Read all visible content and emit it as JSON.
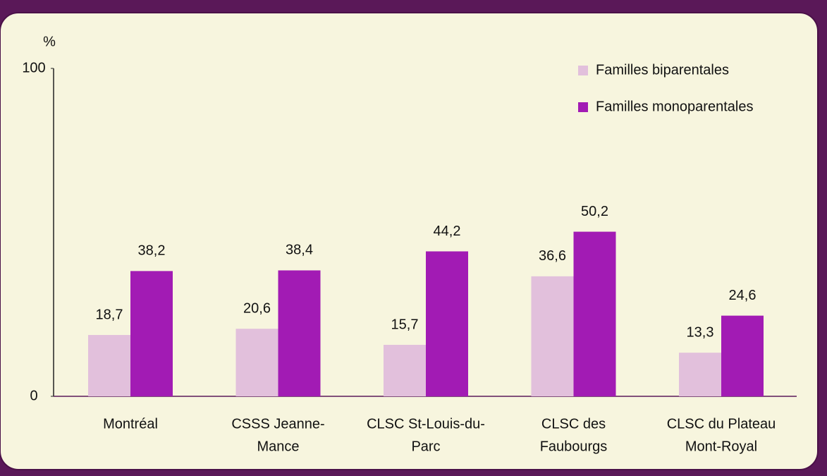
{
  "chart_data": {
    "type": "bar",
    "y_label": "%",
    "categories": [
      [
        "Montréal"
      ],
      [
        "CSSS Jeanne-",
        "Mance"
      ],
      [
        "CLSC St-Louis-du-",
        "Parc"
      ],
      [
        "CLSC des",
        "Faubourgs"
      ],
      [
        "CLSC du Plateau",
        "Mont-Royal"
      ]
    ],
    "series": [
      {
        "name": "Familles biparentales",
        "color": "#e2c0dc",
        "values": [
          18.7,
          20.6,
          15.7,
          36.6,
          13.3
        ],
        "value_labels": [
          "18,7",
          "20,6",
          "15,7",
          "36,6",
          "13,3"
        ]
      },
      {
        "name": "Familles monoparentales",
        "color": "#a21bb4",
        "values": [
          38.2,
          38.4,
          44.2,
          50.2,
          24.6
        ],
        "value_labels": [
          "38,2",
          "38,4",
          "44,2",
          "50,2",
          "24,6"
        ]
      }
    ],
    "ylim": [
      0,
      100
    ],
    "yticks": [
      0,
      100
    ],
    "grid": false,
    "legend": "top-right"
  }
}
